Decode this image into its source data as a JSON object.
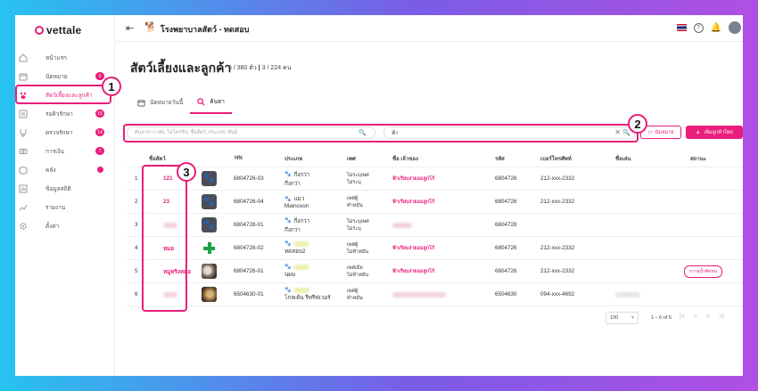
{
  "brand": {
    "logo_text": "vettale"
  },
  "header": {
    "clinic_name": "โรงพยาบาลสัตว์ - ทดสอบ"
  },
  "sidebar": {
    "items": [
      {
        "label": "หน้าแรก",
        "icon": "home-icon",
        "badge": ""
      },
      {
        "label": "นัดหมาย",
        "icon": "calendar-icon",
        "badge": "5"
      },
      {
        "label": "สัตว์เลี้ยงและลูกค้า",
        "icon": "pet-icon",
        "badge": "",
        "active": true
      },
      {
        "label": "รอคิวรักษา",
        "icon": "queue-icon",
        "badge": "15"
      },
      {
        "label": "ตรวจรักษา",
        "icon": "stethoscope-icon",
        "badge": "14"
      },
      {
        "label": "การเงิน",
        "icon": "money-icon",
        "badge": "7"
      },
      {
        "label": "คลัง",
        "icon": "box-icon",
        "badge": "dot"
      },
      {
        "label": "ข้อมูลสถิติ",
        "icon": "stats-icon",
        "badge": ""
      },
      {
        "label": "รายงาน",
        "icon": "report-icon",
        "badge": ""
      },
      {
        "label": "ตั้งค่า",
        "icon": "gear-icon",
        "badge": ""
      }
    ]
  },
  "page": {
    "title": "สัตว์เลี้ยงและลูกค้า",
    "subtitle_pets": "6 / 380 ตัว",
    "subtitle_customers": "3 / 224 คน"
  },
  "tabs": [
    {
      "label": "นัดหมายวันนี้",
      "icon": "calendar-icon"
    },
    {
      "label": "ค้นหา",
      "icon": "search-icon",
      "active": true
    }
  ],
  "search": {
    "placeholder": "ค้นหาจาก HN, ไมโครชิป, ชื่อสัตว์, ประเภท, พันธุ์",
    "filter_value": "ฟ้า"
  },
  "buttons": {
    "appointment": "นัดหมาย",
    "add": "เพิ่มลูกค้าใหม่"
  },
  "annotations": [
    "1",
    "2",
    "3"
  ],
  "table": {
    "columns": [
      "ชื่อสัตว์",
      "HN",
      "ประเภท",
      "เพศ",
      "ชื่อ เจ้าของ",
      "รหัส",
      "เบอร์โทรศัพท์",
      "ชื่อเล่น",
      "สถานะ"
    ],
    "rows": [
      {
        "no": "1",
        "pet_name": "121",
        "img": "paw",
        "hn": "6804726-03",
        "species": "กึ่งกว่า",
        "breed": "กึ่งกว่า",
        "sex1": "ไม่ระบุเพศ",
        "sex2": "ไม่ระบุ",
        "owner": "ฟ้าเรียบง่ายอมลูกโก้",
        "code": "6804726",
        "phone": "212-xxx-2332",
        "status": ""
      },
      {
        "no": "2",
        "pet_name": "23",
        "img": "paw",
        "hn": "6804726-04",
        "species": "แมว",
        "breed": "Maincoon",
        "sex1": "เพศผู้",
        "sex2": "ทำหมัน",
        "owner": "ฟ้าเรียบง่ายอมลูกโก้",
        "code": "6804726",
        "phone": "212-xxx-2332",
        "status": ""
      },
      {
        "no": "3",
        "pet_name": "",
        "img": "paw",
        "hn": "6804728-01",
        "species": "กึ่งกว่า",
        "breed": "กึ่งกว่า",
        "sex1": "ไม่ระบุเพศ",
        "sex2": "ไม่ระบุ",
        "owner": "",
        "code": "6804728",
        "phone": "",
        "status": ""
      },
      {
        "no": "4",
        "pet_name": "หมอ",
        "img": "plus",
        "hn": "6804726-02",
        "species": "",
        "breed": "ทดสอบ2",
        "sex1": "เพศผู้",
        "sex2": "ไม่ทำหมัน",
        "owner": "ฟ้าเรียบง่ายอมลูกโก้",
        "code": "6804726",
        "phone": "212-xxx-2332",
        "status": ""
      },
      {
        "no": "5",
        "pet_name": "หมูหริงหมอ",
        "img": "photo1",
        "hn": "6804726-01",
        "species": "",
        "breed": "นผม",
        "sex1": "เพศเมีย",
        "sex2": "ไม่ทำหมัน",
        "owner": "ฟ้าเรียบง่ายอมลูกโก้",
        "code": "6804726",
        "phone": "212-xxx-2332",
        "status": "ถวายน้ำพัดทน"
      },
      {
        "no": "6",
        "pet_name": "",
        "img": "photo2",
        "hn": "6504630-01",
        "species": "",
        "breed": "โกลเด้น รีทรีฟเวอร์",
        "sex1": "เพศผู้",
        "sex2": "ทำหมัน",
        "owner": "",
        "code": "6504630",
        "phone": "094-xxx-4692",
        "status": ""
      }
    ]
  },
  "pagination": {
    "page_size": "100",
    "range": "1 – 6 of 6"
  },
  "colors": {
    "accent": "#e91e7a",
    "text": "#222222"
  }
}
